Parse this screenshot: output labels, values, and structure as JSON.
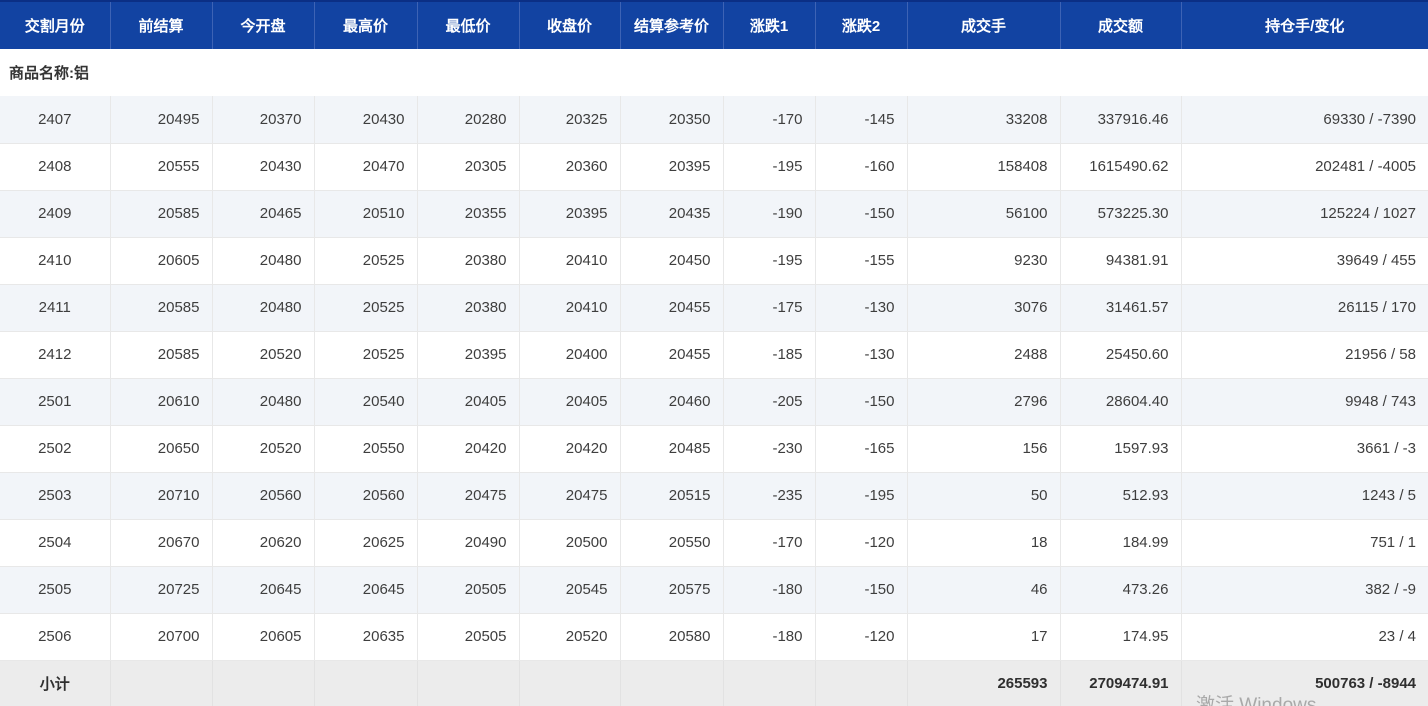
{
  "table": {
    "columns": [
      {
        "key": "month",
        "label": "交割月份"
      },
      {
        "key": "prev_settle",
        "label": "前结算"
      },
      {
        "key": "open",
        "label": "今开盘"
      },
      {
        "key": "high",
        "label": "最高价"
      },
      {
        "key": "low",
        "label": "最低价"
      },
      {
        "key": "close",
        "label": "收盘价"
      },
      {
        "key": "settle_ref",
        "label": "结算参考价"
      },
      {
        "key": "change1",
        "label": "涨跌1"
      },
      {
        "key": "change2",
        "label": "涨跌2"
      },
      {
        "key": "volume",
        "label": "成交手"
      },
      {
        "key": "turnover",
        "label": "成交额"
      },
      {
        "key": "oi_change",
        "label": "持仓手/变化"
      }
    ],
    "group_label": "商品名称:铝",
    "rows": [
      [
        "2407",
        "20495",
        "20370",
        "20430",
        "20280",
        "20325",
        "20350",
        "-170",
        "-145",
        "33208",
        "337916.46",
        "69330 / -7390"
      ],
      [
        "2408",
        "20555",
        "20430",
        "20470",
        "20305",
        "20360",
        "20395",
        "-195",
        "-160",
        "158408",
        "1615490.62",
        "202481 / -4005"
      ],
      [
        "2409",
        "20585",
        "20465",
        "20510",
        "20355",
        "20395",
        "20435",
        "-190",
        "-150",
        "56100",
        "573225.30",
        "125224 / 1027"
      ],
      [
        "2410",
        "20605",
        "20480",
        "20525",
        "20380",
        "20410",
        "20450",
        "-195",
        "-155",
        "9230",
        "94381.91",
        "39649 / 455"
      ],
      [
        "2411",
        "20585",
        "20480",
        "20525",
        "20380",
        "20410",
        "20455",
        "-175",
        "-130",
        "3076",
        "31461.57",
        "26115 / 170"
      ],
      [
        "2412",
        "20585",
        "20520",
        "20525",
        "20395",
        "20400",
        "20455",
        "-185",
        "-130",
        "2488",
        "25450.60",
        "21956 / 58"
      ],
      [
        "2501",
        "20610",
        "20480",
        "20540",
        "20405",
        "20405",
        "20460",
        "-205",
        "-150",
        "2796",
        "28604.40",
        "9948 / 743"
      ],
      [
        "2502",
        "20650",
        "20520",
        "20550",
        "20420",
        "20420",
        "20485",
        "-230",
        "-165",
        "156",
        "1597.93",
        "3661 / -3"
      ],
      [
        "2503",
        "20710",
        "20560",
        "20560",
        "20475",
        "20475",
        "20515",
        "-235",
        "-195",
        "50",
        "512.93",
        "1243 / 5"
      ],
      [
        "2504",
        "20670",
        "20620",
        "20625",
        "20490",
        "20500",
        "20550",
        "-170",
        "-120",
        "18",
        "184.99",
        "751 / 1"
      ],
      [
        "2505",
        "20725",
        "20645",
        "20645",
        "20505",
        "20545",
        "20575",
        "-180",
        "-150",
        "46",
        "473.26",
        "382 / -9"
      ],
      [
        "2506",
        "20700",
        "20605",
        "20635",
        "20505",
        "20520",
        "20580",
        "-180",
        "-120",
        "17",
        "174.95",
        "23 / 4"
      ]
    ],
    "subtotal": {
      "label": "小计",
      "volume": "265593",
      "turnover": "2709474.91",
      "oi_change": "500763 / -8944"
    }
  },
  "watermark_text": "激活 Windows",
  "colors": {
    "header_bg": "#1243a2",
    "header_separator": "#3d63b5",
    "group_row_bg": "#f8a76e",
    "stripe_row_bg": "#f2f5f9",
    "subtotal_bg": "#ececec",
    "text": "#3e3e3e"
  }
}
